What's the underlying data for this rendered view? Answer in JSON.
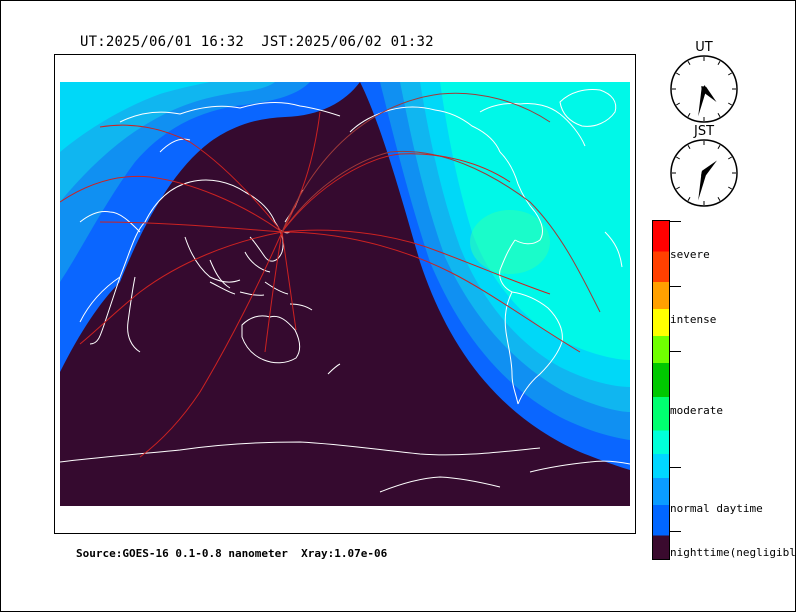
{
  "header": {
    "ut_label": "UT:2025/06/01 16:32",
    "jst_label": "JST:2025/06/02 01:32"
  },
  "footer": {
    "source_text": "Source:GOES-16 0.1-0.8 nanometer  Xray:1.07e-06"
  },
  "clocks": {
    "ut": {
      "label": "UT",
      "hour": 16,
      "minute": 32
    },
    "jst": {
      "label": "JST",
      "hour": 1,
      "minute": 32
    }
  },
  "legend": {
    "labels": {
      "severe": "severe",
      "intense": "intense",
      "moderate": "moderate",
      "normal": "normal daytime",
      "night": "nighttime(negligible)"
    },
    "colors": [
      "#3a0a2e",
      "#0066ff",
      "#0a9cff",
      "#00d7ff",
      "#00ffd9",
      "#00ff70",
      "#00c800",
      "#70ff00",
      "#ffff00",
      "#ffa000",
      "#ff4000",
      "#ff0000"
    ]
  },
  "map": {
    "colors": {
      "night": "#350a2f",
      "day_ring1": "#0a66ff",
      "day_ring2": "#1090f2",
      "day_ring3": "#10b6f0",
      "day_ring4": "#00d8f8",
      "day_core": "#00f8e8",
      "subsolar": "#30ffb0",
      "coast": "#ffffff",
      "paths": "#cc2222"
    }
  }
}
